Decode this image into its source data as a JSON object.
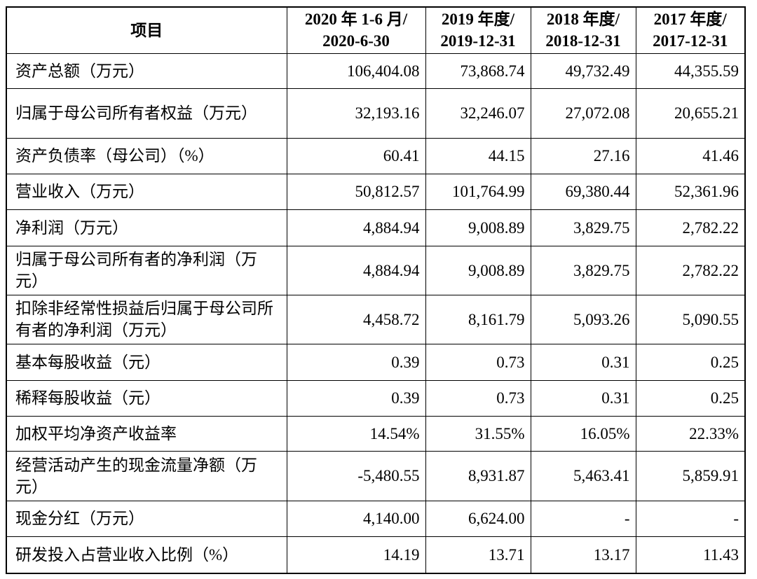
{
  "table": {
    "headers": [
      [
        "项目"
      ],
      [
        "2020 年 1-6 月/",
        "2020-6-30"
      ],
      [
        "2019 年度/",
        "2019-12-31"
      ],
      [
        "2018 年度/",
        "2018-12-31"
      ],
      [
        "2017 年度/",
        "2017-12-31"
      ]
    ],
    "rows": [
      {
        "label": "资产总额（万元）",
        "values": [
          "106,404.08",
          "73,868.74",
          "49,732.49",
          "44,355.59"
        ]
      },
      {
        "label": "归属于母公司所有者权益（万元）",
        "values": [
          "32,193.16",
          "32,246.07",
          "27,072.08",
          "20,655.21"
        ]
      },
      {
        "label": "资产负债率（母公司）（%）",
        "values": [
          "60.41",
          "44.15",
          "27.16",
          "41.46"
        ]
      },
      {
        "label": "营业收入（万元）",
        "values": [
          "50,812.57",
          "101,764.99",
          "69,380.44",
          "52,361.96"
        ]
      },
      {
        "label": "净利润（万元）",
        "values": [
          "4,884.94",
          "9,008.89",
          "3,829.75",
          "2,782.22"
        ]
      },
      {
        "label": "归属于母公司所有者的净利润（万元）",
        "values": [
          "4,884.94",
          "9,008.89",
          "3,829.75",
          "2,782.22"
        ]
      },
      {
        "label": "扣除非经常性损益后归属于母公司所有者的净利润（万元）",
        "values": [
          "4,458.72",
          "8,161.79",
          "5,093.26",
          "5,090.55"
        ]
      },
      {
        "label": "基本每股收益（元）",
        "values": [
          "0.39",
          "0.73",
          "0.31",
          "0.25"
        ]
      },
      {
        "label": "稀释每股收益（元）",
        "values": [
          "0.39",
          "0.73",
          "0.31",
          "0.25"
        ]
      },
      {
        "label": "加权平均净资产收益率",
        "values": [
          "14.54%",
          "31.55%",
          "16.05%",
          "22.33%"
        ]
      },
      {
        "label": "经营活动产生的现金流量净额（万元）",
        "values": [
          "-5,480.55",
          "8,931.87",
          "5,463.41",
          "5,859.91"
        ]
      },
      {
        "label": "现金分红（万元）",
        "values": [
          "4,140.00",
          "6,624.00",
          "-",
          "-"
        ]
      },
      {
        "label": "研发投入占营业收入比例（%）",
        "values": [
          "14.19",
          "13.71",
          "13.17",
          "11.43"
        ]
      }
    ]
  }
}
